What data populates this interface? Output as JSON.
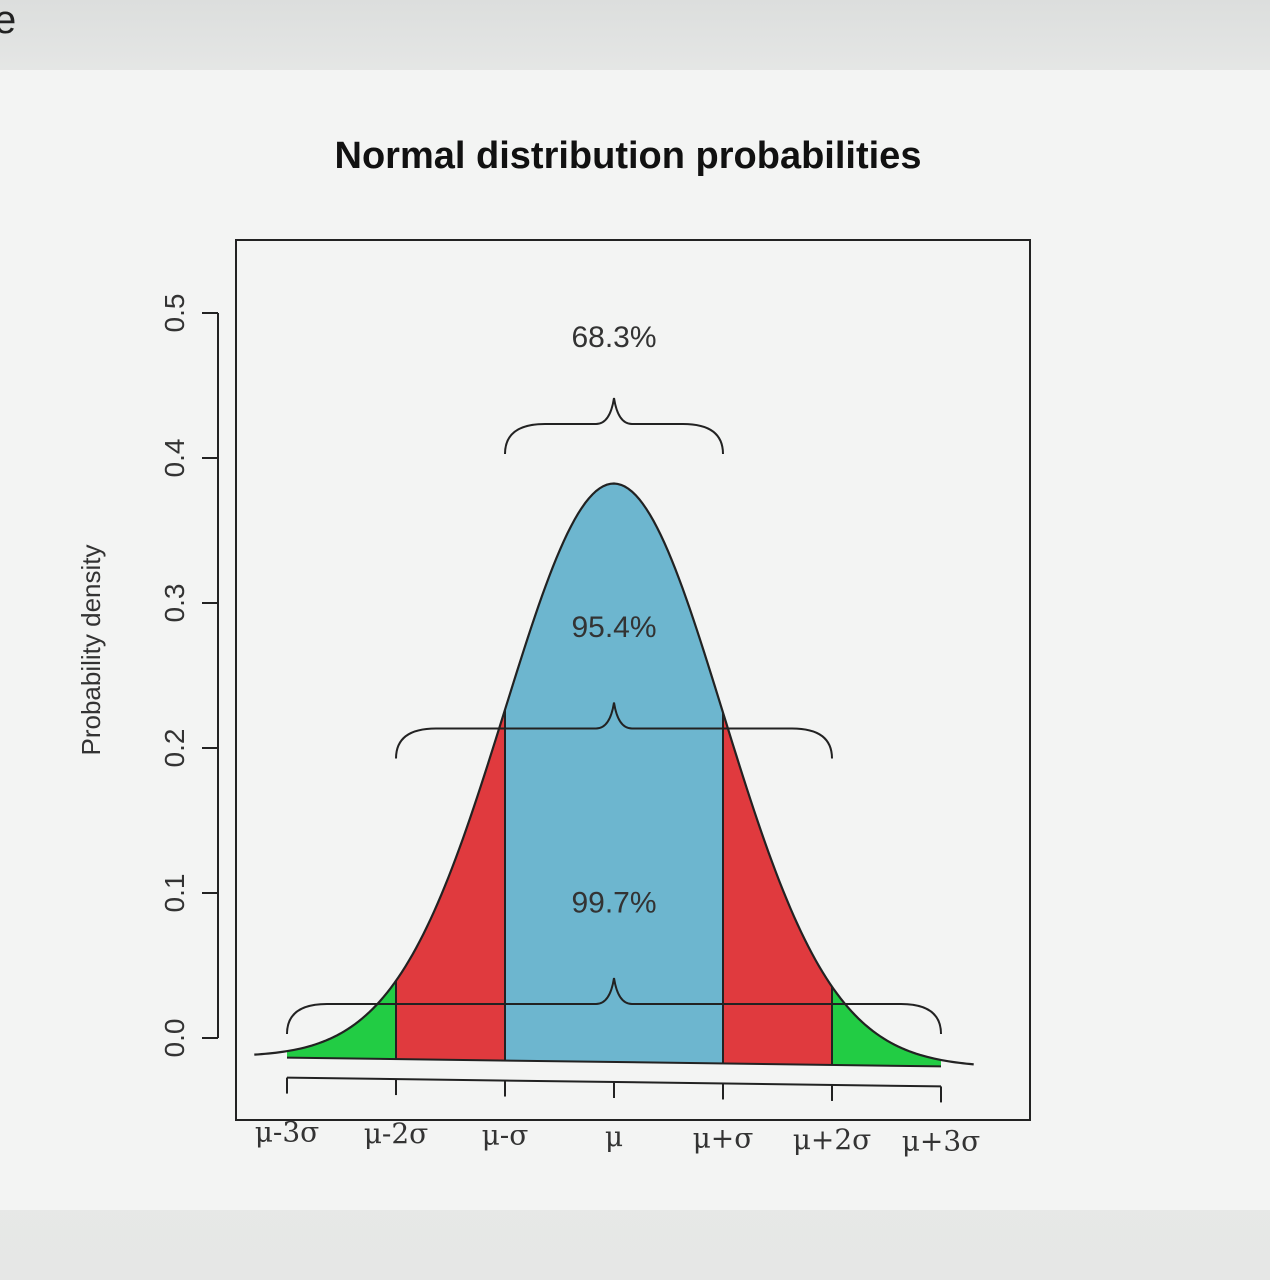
{
  "corner_text": "e",
  "chart_data": {
    "type": "area",
    "title": "Normal distribution probabilities",
    "xlabel": "",
    "ylabel": "Probability density",
    "xlim": [
      -3.3,
      3.3
    ],
    "ylim": [
      0.0,
      0.56
    ],
    "x_ticks": [
      -3,
      -2,
      -1,
      0,
      1,
      2,
      3
    ],
    "x_tick_labels": [
      "μ-3σ",
      "μ-2σ",
      "μ-σ",
      "μ",
      "μ+σ",
      "μ+2σ",
      "μ+3σ"
    ],
    "y_ticks": [
      0.0,
      0.1,
      0.2,
      0.3,
      0.4,
      0.5
    ],
    "y_tick_labels": [
      "0.0",
      "0.1",
      "0.2",
      "0.3",
      "0.4",
      "0.5"
    ],
    "curve": "standard normal density",
    "regions": [
      {
        "from": -3,
        "to": -2,
        "color": "#22cc44"
      },
      {
        "from": -2,
        "to": -1,
        "color": "#e03a3e"
      },
      {
        "from": -1,
        "to": 1,
        "color": "#6db6cf"
      },
      {
        "from": 1,
        "to": 2,
        "color": "#e03a3e"
      },
      {
        "from": 2,
        "to": 3,
        "color": "#22cc44"
      }
    ],
    "annotations": [
      {
        "text": "68.3%",
        "from": -1,
        "to": 1,
        "y": 0.44,
        "label_y": 0.5
      },
      {
        "text": "95.4%",
        "from": -2,
        "to": 2,
        "y": 0.23,
        "label_y": 0.3
      },
      {
        "text": "99.7%",
        "from": -3,
        "to": 3,
        "y": 0.04,
        "label_y": 0.11
      }
    ],
    "grid": false,
    "legend": "none"
  }
}
